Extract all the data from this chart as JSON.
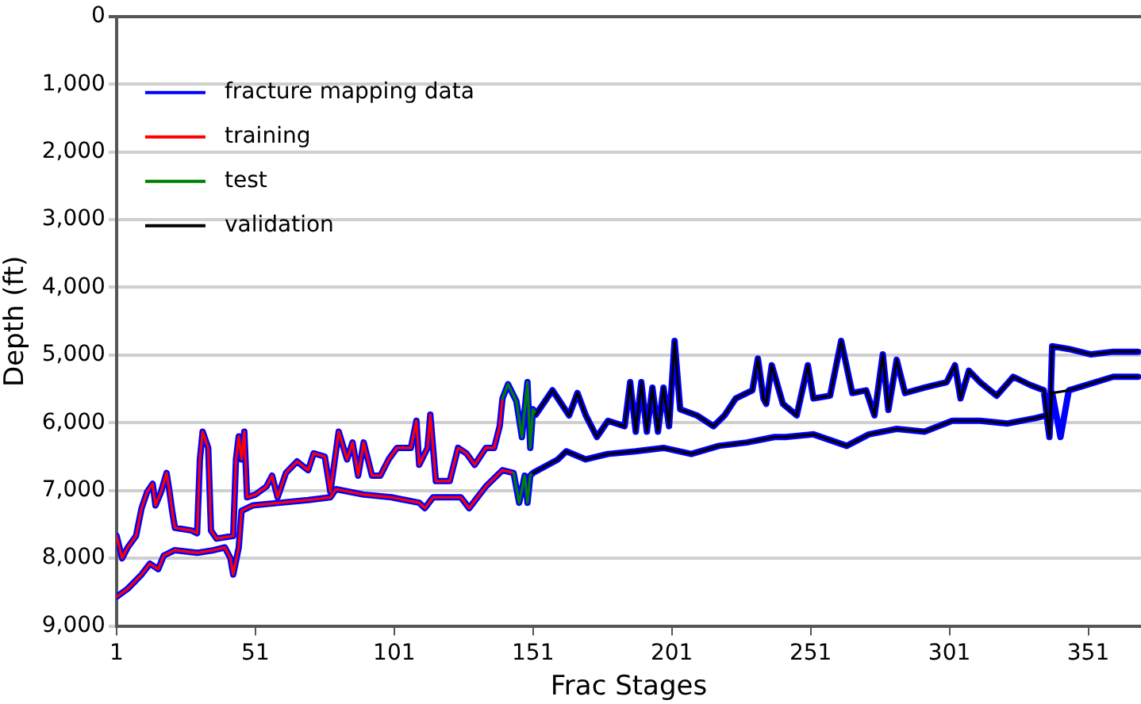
{
  "chart_data": {
    "type": "line",
    "xlabel": "Frac Stages",
    "ylabel": "Depth (ft)",
    "xlim": [
      1,
      370
    ],
    "xticks": [
      1,
      51,
      101,
      151,
      201,
      251,
      301,
      351
    ],
    "ylim": [
      9000,
      0
    ],
    "yticks": [
      0,
      {
        "value": 1000,
        "label": "1,000"
      },
      {
        "value": 2000,
        "label": "2,000"
      },
      {
        "value": 3000,
        "label": "3,000"
      },
      {
        "value": 4000,
        "label": "4,000"
      },
      {
        "value": 5000,
        "label": "5,000"
      },
      {
        "value": 6000,
        "label": "6,000"
      },
      {
        "value": 7000,
        "label": "7,000"
      },
      {
        "value": 8000,
        "label": "8,000"
      },
      {
        "value": 9000,
        "label": "9,000"
      }
    ],
    "grid": "y",
    "legend": "top left",
    "marker": "none",
    "line_style": "solid",
    "series": [
      {
        "name": "fracture mapping data",
        "color": "#0000ff",
        "x": [
          1,
          3,
          5,
          8,
          10,
          12,
          14,
          15,
          17,
          19,
          20,
          21,
          22,
          28,
          30,
          31,
          32,
          34,
          35,
          37,
          43,
          44,
          45,
          46,
          47,
          48,
          51,
          55,
          57,
          59,
          62,
          66,
          70,
          72,
          76,
          78,
          81,
          84,
          86,
          88,
          90,
          93,
          96,
          99,
          102,
          107,
          109,
          110,
          113,
          114,
          116,
          121,
          124,
          127,
          130,
          134,
          137,
          139,
          140,
          142,
          145,
          147,
          149,
          150,
          151,
          152,
          158,
          164,
          167,
          170,
          174,
          178,
          184,
          186,
          188,
          190,
          192,
          194,
          196,
          198,
          200,
          202,
          204,
          210,
          216,
          220,
          224,
          230,
          232,
          234,
          235,
          237,
          241,
          246,
          250,
          252,
          258,
          262,
          266,
          271,
          274,
          277,
          279,
          282,
          285,
          292,
          300,
          303,
          305,
          308,
          312,
          318,
          324,
          330,
          335,
          337,
          338,
          344,
          352,
          360,
          369
        ],
        "values": [
          7670,
          8000,
          7840,
          7670,
          7260,
          7020,
          6900,
          7220,
          7020,
          6740,
          7000,
          7300,
          7550,
          7590,
          7630,
          6540,
          6130,
          6370,
          7590,
          7710,
          7670,
          6540,
          6200,
          6540,
          6130,
          7100,
          7060,
          6940,
          6780,
          7100,
          6740,
          6570,
          6700,
          6450,
          6500,
          7020,
          6130,
          6540,
          6290,
          6780,
          6290,
          6780,
          6780,
          6540,
          6370,
          6370,
          5970,
          6620,
          6370,
          5880,
          6860,
          6860,
          6370,
          6450,
          6620,
          6370,
          6370,
          6050,
          5640,
          5430,
          5680,
          6210,
          5400,
          6370,
          5800,
          5880,
          5520,
          5890,
          5560,
          5890,
          6210,
          5970,
          6050,
          5400,
          6130,
          5400,
          6130,
          5480,
          6130,
          5480,
          6050,
          4790,
          5800,
          5890,
          6050,
          5890,
          5640,
          5520,
          5050,
          5640,
          5720,
          5150,
          5720,
          5890,
          5150,
          5640,
          5600,
          4790,
          5560,
          5520,
          5890,
          4990,
          5810,
          5070,
          5560,
          5480,
          5400,
          5150,
          5640,
          5230,
          5400,
          5600,
          5320,
          5440,
          5520,
          6210,
          4870,
          4910,
          4990,
          4950,
          4950
        ]
      },
      {
        "color": "#0000ff",
        "x": [
          1,
          5,
          10,
          13,
          16,
          18,
          22,
          30,
          36,
          40,
          42,
          43,
          45,
          46,
          50,
          60,
          70,
          78,
          80,
          90,
          100,
          110,
          112,
          115,
          125,
          128,
          131,
          134,
          138,
          140,
          144,
          146,
          148,
          149,
          150,
          151,
          160,
          163,
          170,
          178,
          188,
          198,
          208,
          218,
          228,
          238,
          242,
          252,
          264,
          272,
          282,
          292,
          302,
          312,
          322,
          332,
          336,
          337,
          338,
          341,
          344,
          360,
          369
        ],
        "values": [
          8570,
          8450,
          8240,
          8080,
          8160,
          7960,
          7880,
          7920,
          7880,
          7840,
          8000,
          8240,
          7840,
          7300,
          7220,
          7180,
          7140,
          7100,
          6980,
          7060,
          7100,
          7180,
          7260,
          7100,
          7100,
          7260,
          7100,
          6940,
          6780,
          6700,
          6740,
          7180,
          6780,
          7180,
          6780,
          6740,
          6540,
          6420,
          6540,
          6460,
          6420,
          6370,
          6460,
          6340,
          6290,
          6210,
          6210,
          6170,
          6340,
          6170,
          6090,
          6130,
          5970,
          5970,
          6010,
          5930,
          5890,
          6170,
          5560,
          6210,
          5520,
          5320,
          5320
        ]
      },
      {
        "name": "training",
        "color": "#ff0000",
        "x": [
          1,
          3,
          5,
          8,
          10,
          12,
          14,
          15,
          17,
          19,
          20,
          21,
          22,
          28,
          30,
          31,
          32,
          34,
          35,
          37,
          43,
          44,
          45,
          46,
          47,
          48,
          51,
          55,
          57,
          59,
          62,
          66,
          70,
          72,
          76,
          78,
          81,
          84,
          86,
          88,
          90,
          93,
          96,
          99,
          102,
          107,
          109,
          110,
          113,
          114,
          116,
          121,
          124,
          127,
          130,
          134,
          137,
          139,
          140
        ],
        "values": [
          7670,
          8000,
          7840,
          7670,
          7260,
          7020,
          6900,
          7220,
          7020,
          6740,
          7000,
          7300,
          7550,
          7590,
          7630,
          6540,
          6130,
          6370,
          7590,
          7710,
          7670,
          6540,
          6200,
          6540,
          6130,
          7100,
          7060,
          6940,
          6780,
          7100,
          6740,
          6570,
          6700,
          6450,
          6500,
          7020,
          6130,
          6540,
          6290,
          6780,
          6290,
          6780,
          6780,
          6540,
          6370,
          6370,
          5970,
          6620,
          6370,
          5880,
          6860,
          6860,
          6370,
          6450,
          6620,
          6370,
          6370,
          6050,
          5640
        ]
      },
      {
        "color": "#ff0000",
        "x": [
          1,
          5,
          10,
          13,
          16,
          18,
          22,
          30,
          36,
          40,
          42,
          43,
          45,
          46,
          50,
          60,
          70,
          78,
          80,
          90,
          100,
          110,
          112,
          115,
          125,
          128,
          131,
          134,
          138,
          140,
          144
        ],
        "values": [
          8570,
          8450,
          8240,
          8080,
          8160,
          7960,
          7880,
          7920,
          7880,
          7840,
          8000,
          8240,
          7840,
          7300,
          7220,
          7180,
          7140,
          7100,
          6980,
          7060,
          7100,
          7180,
          7260,
          7100,
          7100,
          7260,
          7100,
          6940,
          6780,
          6700,
          6740
        ]
      },
      {
        "name": "test",
        "color": "#008000",
        "x": [
          140,
          142,
          145,
          147,
          149,
          150,
          151,
          152
        ],
        "values": [
          5640,
          5430,
          5680,
          6210,
          5400,
          6370,
          5800,
          5880
        ]
      },
      {
        "color": "#008000",
        "x": [
          144,
          146,
          148,
          149,
          150,
          151
        ],
        "values": [
          6740,
          7180,
          6780,
          7180,
          6780,
          6740
        ]
      },
      {
        "name": "validation",
        "color": "#000000",
        "x": [
          152,
          158,
          164,
          167,
          170,
          174,
          178,
          184,
          186,
          188,
          190,
          192,
          194,
          196,
          198,
          200,
          202,
          204,
          210,
          216,
          220,
          224,
          230,
          232,
          234,
          235,
          237,
          241,
          246,
          250,
          252,
          258,
          262,
          266,
          271,
          274,
          277,
          279,
          282,
          285,
          292,
          300,
          303,
          305,
          308,
          312,
          318,
          324,
          330,
          335,
          337,
          338,
          344,
          352,
          360,
          369
        ],
        "values": [
          5880,
          5520,
          5890,
          5560,
          5890,
          6210,
          5970,
          6050,
          5400,
          6130,
          5400,
          6130,
          5480,
          6130,
          5480,
          6050,
          4790,
          5800,
          5890,
          6050,
          5890,
          5640,
          5520,
          5050,
          5640,
          5720,
          5150,
          5720,
          5890,
          5150,
          5640,
          5600,
          4790,
          5560,
          5520,
          5890,
          4990,
          5810,
          5070,
          5560,
          5480,
          5400,
          5150,
          5640,
          5230,
          5400,
          5600,
          5320,
          5440,
          5520,
          6210,
          4870,
          4910,
          4990,
          4950,
          4950
        ]
      },
      {
        "color": "#000000",
        "x": [
          151,
          160,
          163,
          170,
          178,
          188,
          198,
          208,
          218,
          228,
          238,
          242,
          252,
          264,
          272,
          282,
          292,
          302,
          312,
          322,
          332,
          336,
          337,
          338,
          344,
          360,
          369
        ],
        "values": [
          6740,
          6540,
          6420,
          6540,
          6460,
          6420,
          6370,
          6460,
          6340,
          6290,
          6210,
          6210,
          6170,
          6340,
          6170,
          6090,
          6130,
          5970,
          5970,
          6010,
          5930,
          5890,
          6170,
          5560,
          5520,
          5320,
          5320
        ]
      }
    ]
  }
}
